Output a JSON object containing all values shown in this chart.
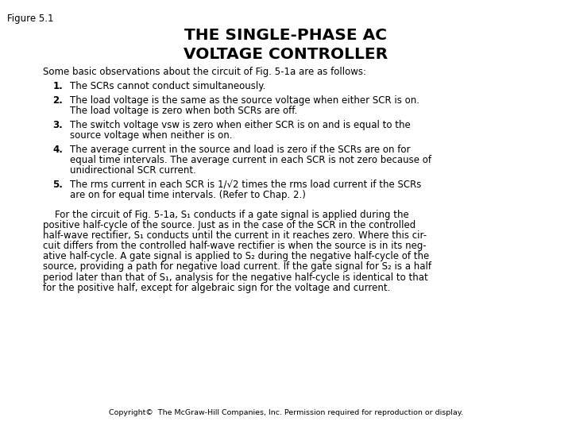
{
  "figure_label": "Figure 5.1",
  "title_line1": "THE SINGLE-PHASE AC",
  "title_line2": "VOLTAGE CONTROLLER",
  "background_color": "#ffffff",
  "text_color": "#000000",
  "copyright": "Copyright©  The McGraw-Hill Companies, Inc. Permission required for reproduction or display.",
  "intro_text": "Some basic observations about the circuit of Fig. 5-1a are as follows:",
  "bullet_numbers": [
    "1.",
    "2.",
    "3.",
    "4.",
    "5."
  ],
  "bullet_lines": [
    [
      "The SCRs cannot conduct simultaneously."
    ],
    [
      "The load voltage is the same as the source voltage when either SCR is on.",
      "The load voltage is zero when both SCRs are off."
    ],
    [
      "The switch voltage vsw is zero when either SCR is on and is equal to the",
      "source voltage when neither is on."
    ],
    [
      "The average current in the source and load is zero if the SCRs are on for",
      "equal time intervals. The average current in each SCR is not zero because of",
      "unidirectional SCR current."
    ],
    [
      "The rms current in each SCR is 1/√2 times the rms load current if the SCRs",
      "are on for equal time intervals. (Refer to Chap. 2.)"
    ]
  ],
  "para_lines": [
    "    For the circuit of Fig. 5-1a, S₁ conducts if a gate signal is applied during the",
    "positive half-cycle of the source. Just as in the case of the SCR in the controlled",
    "half-wave rectifier, S₁ conducts until the current in it reaches zero. Where this cir-",
    "cuit differs from the controlled half-wave rectifier is when the source is in its neg-",
    "ative half-cycle. A gate signal is applied to S₂ during the negative half-cycle of the",
    "source, providing a path for negative load current. If the gate signal for S₂ is a half",
    "period later than that of S₁, analysis for the negative half-cycle is identical to that",
    "for the positive half, except for algebraic sign for the voltage and current."
  ],
  "fontsize": 8.5,
  "title_fontsize": 14.5,
  "label_fontsize": 8.5
}
